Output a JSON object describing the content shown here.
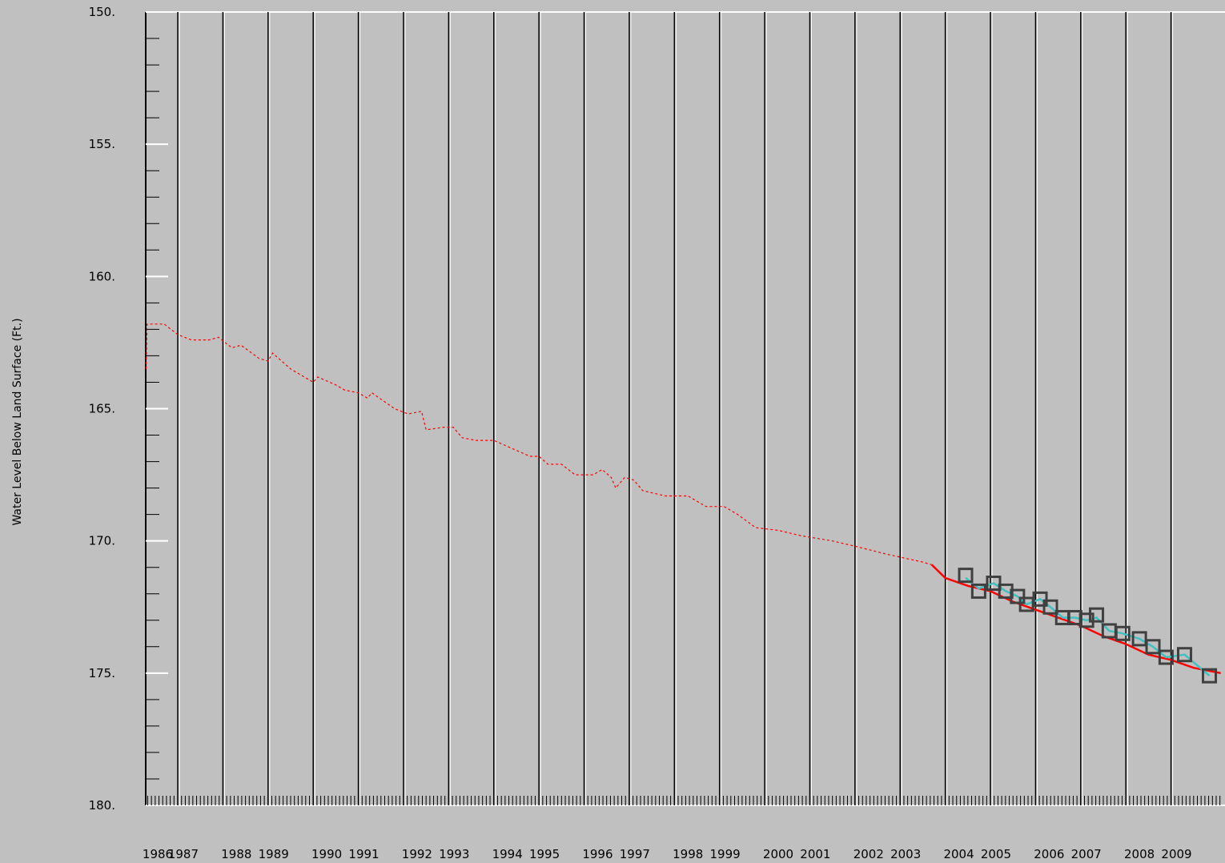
{
  "chart_data": {
    "type": "line",
    "ylabel": "Water Level Below Land Surface (Ft.)",
    "ylim": [
      150,
      180
    ],
    "y_inverted": true,
    "yticks": [
      {
        "value": 150,
        "label": "150."
      },
      {
        "value": 155,
        "label": "155."
      },
      {
        "value": 160,
        "label": "160."
      },
      {
        "value": 165,
        "label": "165."
      },
      {
        "value": 170,
        "label": "170."
      },
      {
        "value": 175,
        "label": "175."
      },
      {
        "value": 180,
        "label": "180."
      }
    ],
    "xlim": [
      1986.29,
      2010.16
    ],
    "xticks": [
      1986,
      1987,
      1988,
      1989,
      1990,
      1991,
      1992,
      1993,
      1994,
      1995,
      1996,
      1997,
      1998,
      1999,
      2000,
      2001,
      2002,
      2003,
      2004,
      2005,
      2006,
      2007,
      2008,
      2009
    ],
    "grid": true,
    "series": [
      {
        "color": "#ff0000",
        "dash": true,
        "x": [
          1986.3,
          1986.32,
          1986.7,
          1987.0,
          1987.3,
          1987.7,
          1987.9,
          1988.2,
          1988.4,
          1988.8,
          1989.0,
          1989.1,
          1989.5,
          1990.0,
          1990.1,
          1990.5,
          1990.7,
          1991.0,
          1991.2,
          1991.3,
          1991.8,
          1992.1,
          1992.4,
          1992.5,
          1992.9,
          1993.1,
          1993.3,
          1993.6,
          1994.0,
          1994.4,
          1994.8,
          1995.0,
          1995.2,
          1995.5,
          1995.8,
          1996.2,
          1996.4,
          1996.6,
          1996.7,
          1996.9,
          1997.1,
          1997.3,
          1997.8,
          1998.3,
          1998.7,
          1999.1,
          1999.4,
          1999.8,
          2000.3,
          2000.8,
          2001.5,
          2002.0,
          2002.7,
          2003.5,
          2003.7
        ],
        "values": [
          163.5,
          161.8,
          161.8,
          162.2,
          162.4,
          162.4,
          162.3,
          162.7,
          162.6,
          163.1,
          163.2,
          162.9,
          163.5,
          164.0,
          163.8,
          164.1,
          164.3,
          164.4,
          164.6,
          164.4,
          165.0,
          165.2,
          165.1,
          165.8,
          165.7,
          165.7,
          166.1,
          166.2,
          166.2,
          166.5,
          166.8,
          166.8,
          167.1,
          167.1,
          167.5,
          167.5,
          167.3,
          167.6,
          168.0,
          167.6,
          167.7,
          168.1,
          168.3,
          168.3,
          168.7,
          168.7,
          169.0,
          169.5,
          169.6,
          169.8,
          170.0,
          170.2,
          170.5,
          170.8,
          170.9
        ]
      },
      {
        "color": "#ff0000",
        "x": [
          2003.7,
          2004.0,
          2004.5,
          2005.0,
          2005.5,
          2006.0,
          2006.5,
          2007.0,
          2007.5,
          2008.0,
          2008.5,
          2009.0,
          2009.5,
          2010.1
        ],
        "values": [
          170.9,
          171.4,
          171.7,
          171.9,
          172.3,
          172.6,
          172.9,
          173.2,
          173.6,
          173.9,
          174.3,
          174.5,
          174.8,
          175.0
        ]
      },
      {
        "color": "#40c0c0",
        "x": [
          2004.45,
          2004.74,
          2005.07,
          2005.34,
          2005.6,
          2005.8,
          2006.1,
          2006.33,
          2006.6,
          2006.87,
          2007.13,
          2007.35,
          2007.63,
          2007.93,
          2008.3,
          2008.6,
          2008.89,
          2009.3,
          2009.85
        ],
        "values": [
          171.4,
          171.8,
          171.6,
          171.9,
          172.1,
          172.4,
          172.2,
          172.5,
          172.9,
          172.9,
          173.0,
          172.9,
          173.4,
          173.5,
          173.7,
          174.0,
          174.4,
          174.3,
          175.1
        ]
      },
      {
        "color": "#404040",
        "marker": "square",
        "x": [
          2004.45,
          2004.74,
          2005.07,
          2005.34,
          2005.6,
          2005.8,
          2006.1,
          2006.33,
          2006.6,
          2006.87,
          2007.13,
          2007.35,
          2007.63,
          2007.93,
          2008.3,
          2008.6,
          2008.89,
          2009.3,
          2009.85
        ],
        "values": [
          171.3,
          171.9,
          171.6,
          171.9,
          172.1,
          172.4,
          172.2,
          172.5,
          172.9,
          172.9,
          173.0,
          172.8,
          173.4,
          173.5,
          173.7,
          174.0,
          174.4,
          174.3,
          175.1
        ]
      }
    ]
  }
}
